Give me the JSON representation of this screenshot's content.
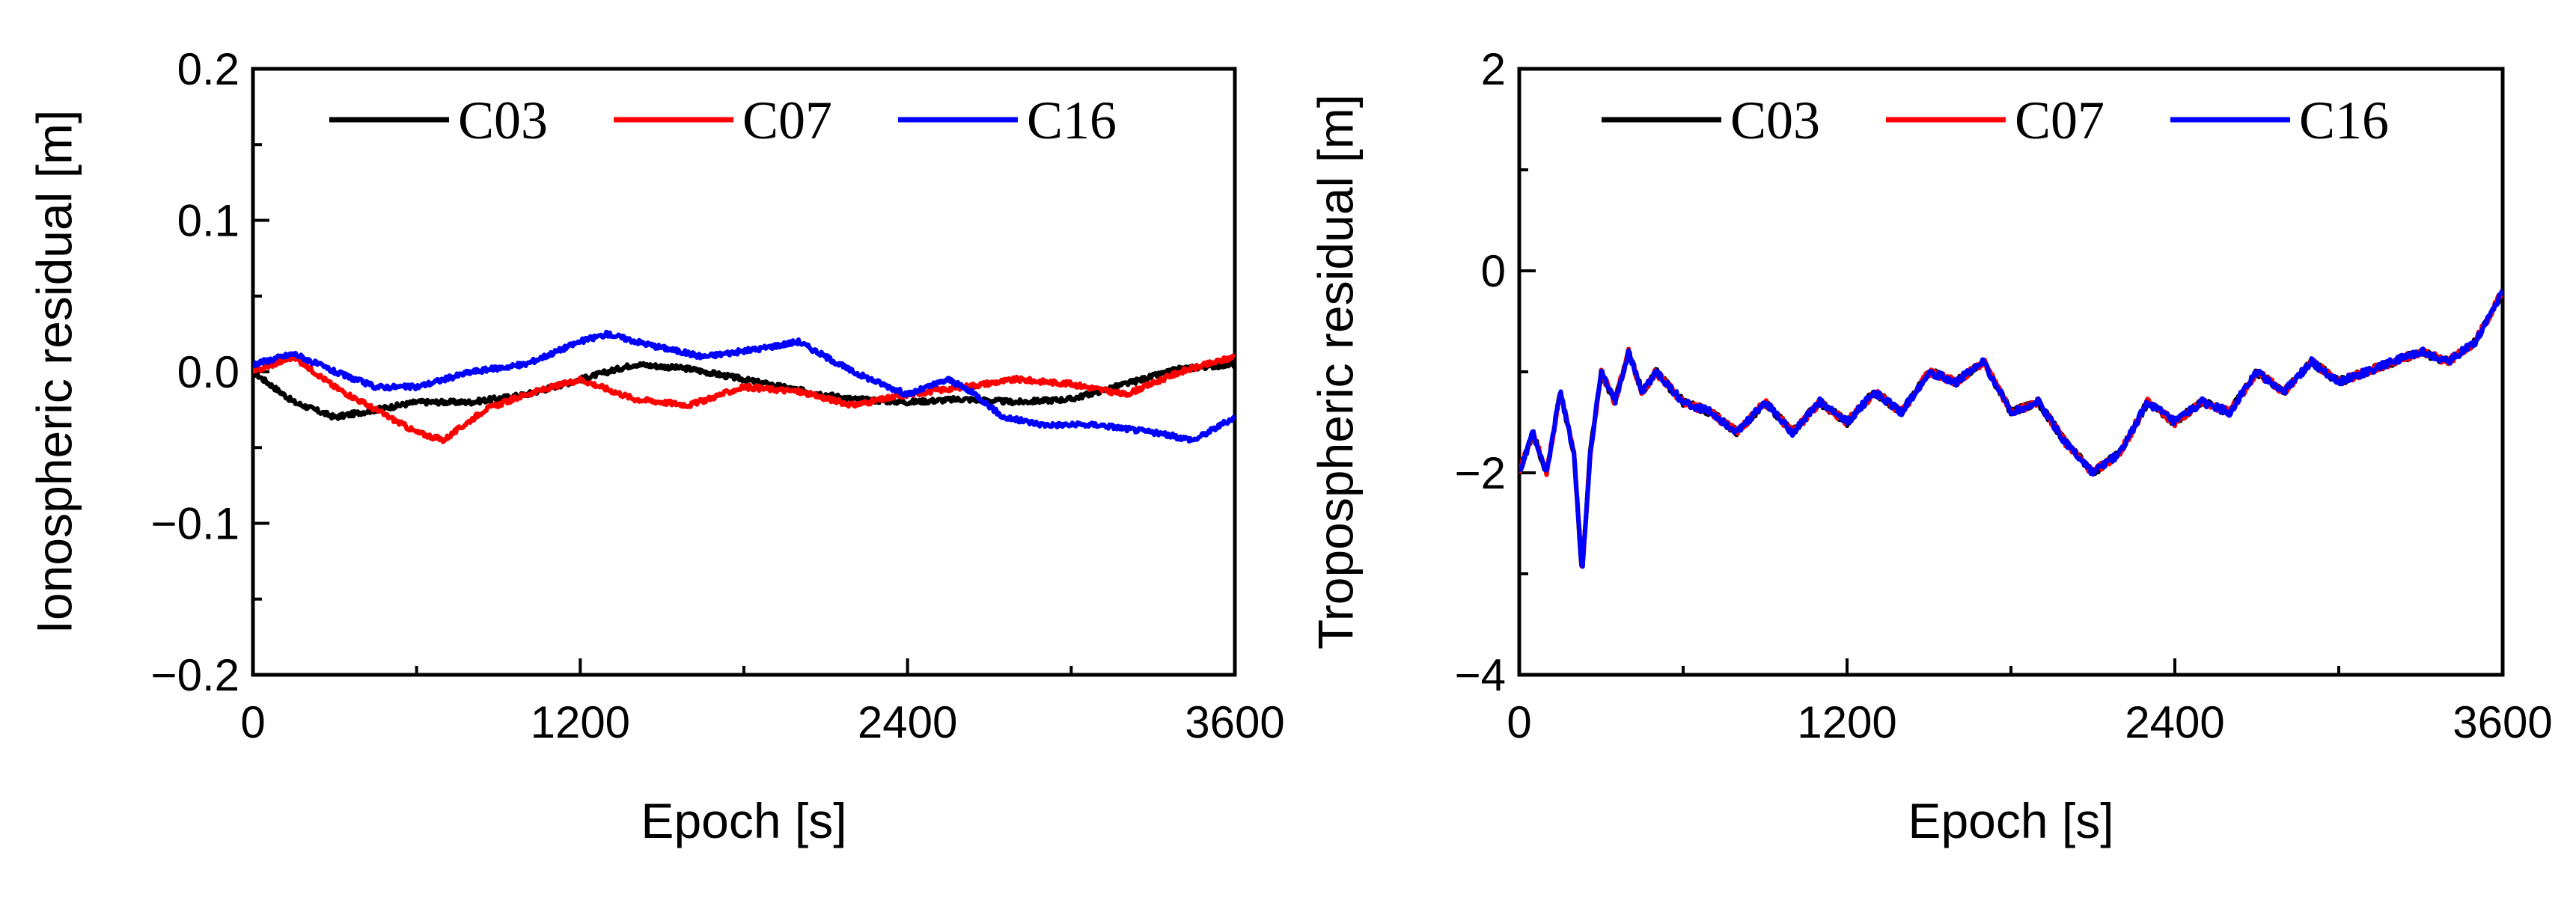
{
  "chart_data": [
    {
      "type": "line",
      "ylabel": "Ionospheric residual [m]",
      "xlabel": "Epoch [s]",
      "xlim": [
        0,
        3600
      ],
      "ylim": [
        -0.2,
        0.2
      ],
      "xticks": [
        "0",
        "1200",
        "2400",
        "3600"
      ],
      "yticks": [
        "−0.2",
        "−0.1",
        "0.0",
        "0.1",
        "0.2"
      ],
      "ytick_values": [
        -0.2,
        -0.1,
        0.0,
        0.1,
        0.2
      ],
      "xtick_values": [
        0,
        1200,
        2400,
        3600
      ],
      "legend": [
        "C03",
        "C07",
        "C16"
      ],
      "legend_position": "top",
      "series": [
        {
          "name": "C03",
          "color": "#000000",
          "x": [
            0,
            150,
            300,
            450,
            600,
            800,
            1000,
            1200,
            1400,
            1600,
            1800,
            2000,
            2200,
            2400,
            2600,
            2800,
            3000,
            3200,
            3400,
            3600
          ],
          "y": [
            0.0,
            -0.02,
            -0.03,
            -0.025,
            -0.02,
            -0.02,
            -0.015,
            -0.005,
            0.005,
            0.002,
            -0.005,
            -0.012,
            -0.018,
            -0.02,
            -0.018,
            -0.02,
            -0.018,
            -0.008,
            0.002,
            0.005
          ]
        },
        {
          "name": "C07",
          "color": "#ff0000",
          "x": [
            0,
            150,
            300,
            450,
            600,
            700,
            850,
            1000,
            1200,
            1400,
            1600,
            1800,
            2000,
            2200,
            2400,
            2600,
            2800,
            3000,
            3200,
            3400,
            3600
          ],
          "y": [
            0.0,
            0.01,
            -0.01,
            -0.025,
            -0.04,
            -0.045,
            -0.025,
            -0.015,
            -0.005,
            -0.018,
            -0.022,
            -0.01,
            -0.013,
            -0.022,
            -0.015,
            -0.01,
            -0.005,
            -0.008,
            -0.015,
            0.0,
            0.01
          ]
        },
        {
          "name": "C16",
          "color": "#0000ff",
          "x": [
            0,
            150,
            300,
            450,
            600,
            800,
            1000,
            1200,
            1300,
            1450,
            1650,
            1850,
            2000,
            2200,
            2400,
            2550,
            2650,
            2750,
            2900,
            3100,
            3300,
            3450,
            3600
          ],
          "y": [
            0.005,
            0.012,
            0.0,
            -0.01,
            -0.01,
            0.0,
            0.005,
            0.02,
            0.025,
            0.018,
            0.01,
            0.015,
            0.02,
            0.0,
            -0.015,
            -0.005,
            -0.015,
            -0.03,
            -0.035,
            -0.035,
            -0.04,
            -0.045,
            -0.03
          ]
        }
      ]
    },
    {
      "type": "line",
      "ylabel": "Tropospheric residual [m]",
      "xlabel": "Epoch [s]",
      "xlim": [
        0,
        3600
      ],
      "ylim": [
        -4,
        2
      ],
      "xticks": [
        "0",
        "1200",
        "2400",
        "3600"
      ],
      "yticks": [
        "−4",
        "−2",
        "0",
        "2"
      ],
      "ytick_values": [
        -4,
        -2,
        0,
        2
      ],
      "xtick_values": [
        0,
        1200,
        2400,
        3600
      ],
      "legend": [
        "C03",
        "C07",
        "C16"
      ],
      "legend_position": "top",
      "series": [
        {
          "name": "C03",
          "color": "#000000",
          "x": [
            0,
            50,
            100,
            150,
            200,
            230,
            260,
            300,
            350,
            400,
            450,
            500,
            600,
            700,
            800,
            900,
            1000,
            1100,
            1200,
            1300,
            1400,
            1500,
            1600,
            1700,
            1800,
            1900,
            2000,
            2100,
            2200,
            2300,
            2400,
            2500,
            2600,
            2700,
            2800,
            2900,
            3000,
            3100,
            3200,
            3300,
            3400,
            3500,
            3600
          ],
          "y": [
            -2.0,
            -1.6,
            -2.0,
            -1.2,
            -1.8,
            -3.0,
            -1.8,
            -1.0,
            -1.3,
            -0.8,
            -1.2,
            -1.0,
            -1.3,
            -1.4,
            -1.6,
            -1.3,
            -1.6,
            -1.3,
            -1.5,
            -1.2,
            -1.4,
            -1.0,
            -1.1,
            -0.9,
            -1.4,
            -1.3,
            -1.7,
            -2.0,
            -1.8,
            -1.3,
            -1.5,
            -1.3,
            -1.4,
            -1.0,
            -1.2,
            -0.9,
            -1.1,
            -1.0,
            -0.9,
            -0.8,
            -0.9,
            -0.7,
            -0.2
          ]
        },
        {
          "name": "C07",
          "color": "#ff0000",
          "x": [
            0,
            50,
            100,
            150,
            200,
            230,
            260,
            300,
            350,
            400,
            450,
            500,
            600,
            700,
            800,
            900,
            1000,
            1100,
            1200,
            1300,
            1400,
            1500,
            1600,
            1700,
            1800,
            1900,
            2000,
            2100,
            2200,
            2300,
            2400,
            2500,
            2600,
            2700,
            2800,
            2900,
            3000,
            3100,
            3200,
            3300,
            3400,
            3500,
            3600
          ],
          "y": [
            -2.0,
            -1.6,
            -2.0,
            -1.2,
            -1.8,
            -3.0,
            -1.8,
            -1.0,
            -1.3,
            -0.8,
            -1.2,
            -1.0,
            -1.3,
            -1.4,
            -1.6,
            -1.3,
            -1.6,
            -1.3,
            -1.5,
            -1.2,
            -1.4,
            -1.0,
            -1.1,
            -0.9,
            -1.4,
            -1.3,
            -1.7,
            -2.0,
            -1.8,
            -1.3,
            -1.5,
            -1.3,
            -1.4,
            -1.0,
            -1.2,
            -0.9,
            -1.1,
            -1.0,
            -0.9,
            -0.8,
            -0.9,
            -0.7,
            -0.2
          ]
        },
        {
          "name": "C16",
          "color": "#0000ff",
          "x": [
            0,
            50,
            100,
            150,
            200,
            230,
            260,
            300,
            350,
            400,
            450,
            500,
            600,
            700,
            800,
            900,
            1000,
            1100,
            1200,
            1300,
            1400,
            1500,
            1600,
            1700,
            1800,
            1900,
            2000,
            2100,
            2200,
            2300,
            2400,
            2500,
            2600,
            2700,
            2800,
            2900,
            3000,
            3100,
            3200,
            3300,
            3400,
            3500,
            3600
          ],
          "y": [
            -2.0,
            -1.6,
            -2.0,
            -1.2,
            -1.8,
            -3.0,
            -1.8,
            -1.0,
            -1.3,
            -0.8,
            -1.2,
            -1.0,
            -1.3,
            -1.4,
            -1.6,
            -1.3,
            -1.6,
            -1.3,
            -1.5,
            -1.2,
            -1.4,
            -1.0,
            -1.1,
            -0.9,
            -1.4,
            -1.3,
            -1.7,
            -2.0,
            -1.8,
            -1.3,
            -1.5,
            -1.3,
            -1.4,
            -1.0,
            -1.2,
            -0.9,
            -1.1,
            -1.0,
            -0.9,
            -0.8,
            -0.9,
            -0.7,
            -0.2
          ]
        }
      ]
    }
  ]
}
